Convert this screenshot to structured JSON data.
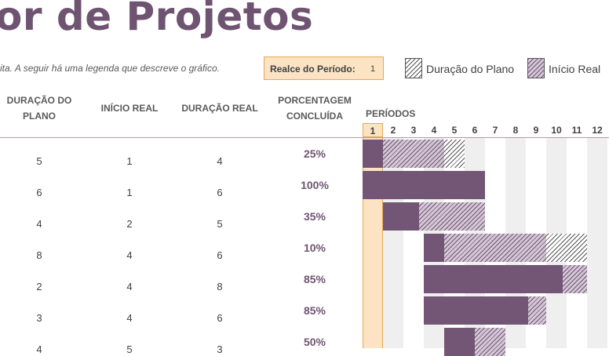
{
  "header": {
    "title": "or de Projetos",
    "subtitle": "ita.  A seguir há uma legenda que descreve o gráfico."
  },
  "highlight": {
    "label": "Realce do Período:",
    "value": "1"
  },
  "legend": [
    {
      "label": "Duração do Plano",
      "style": "hatch-plan"
    },
    {
      "label": "Início Real",
      "style": "hatch-actual"
    }
  ],
  "columns": {
    "plan_duration": "DURAÇÃO DO PLANO",
    "actual_start": "INÍCIO REAL",
    "actual_duration": "DURAÇÃO REAL",
    "percent_complete": "PORCENTAGEM CONCLUÍDA",
    "periods": "PERÍODOS"
  },
  "period_numbers": [
    "1",
    "2",
    "3",
    "4",
    "5",
    "6",
    "7",
    "8",
    "9",
    "10",
    "11",
    "12"
  ],
  "highlighted_period": 1,
  "rows": [
    {
      "plan_start": 1,
      "plan_duration": "5",
      "actual_start": "1",
      "actual_duration": "4",
      "percent": "25%",
      "percent_value": 0.25
    },
    {
      "plan_start": 1,
      "plan_duration": "6",
      "actual_start": "1",
      "actual_duration": "6",
      "percent": "100%",
      "percent_value": 1.0
    },
    {
      "plan_start": 1,
      "plan_duration": "4",
      "actual_start": "2",
      "actual_duration": "5",
      "percent": "35%",
      "percent_value": 0.35
    },
    {
      "plan_start": 4,
      "plan_duration": "8",
      "actual_start": "4",
      "actual_duration": "6",
      "percent": "10%",
      "percent_value": 0.1
    },
    {
      "plan_start": 4,
      "plan_duration": "2",
      "actual_start": "4",
      "actual_duration": "8",
      "percent": "85%",
      "percent_value": 0.85
    },
    {
      "plan_start": 4,
      "plan_duration": "3",
      "actual_start": "4",
      "actual_duration": "6",
      "percent": "85%",
      "percent_value": 0.85
    },
    {
      "plan_start": 4,
      "plan_duration": "4",
      "actual_start": "5",
      "actual_duration": "3",
      "percent": "50%",
      "percent_value": 0.5
    }
  ],
  "colors": {
    "accent": "#735675",
    "orange": "#e8a852",
    "highlight_bg": "#fbe3c4"
  }
}
